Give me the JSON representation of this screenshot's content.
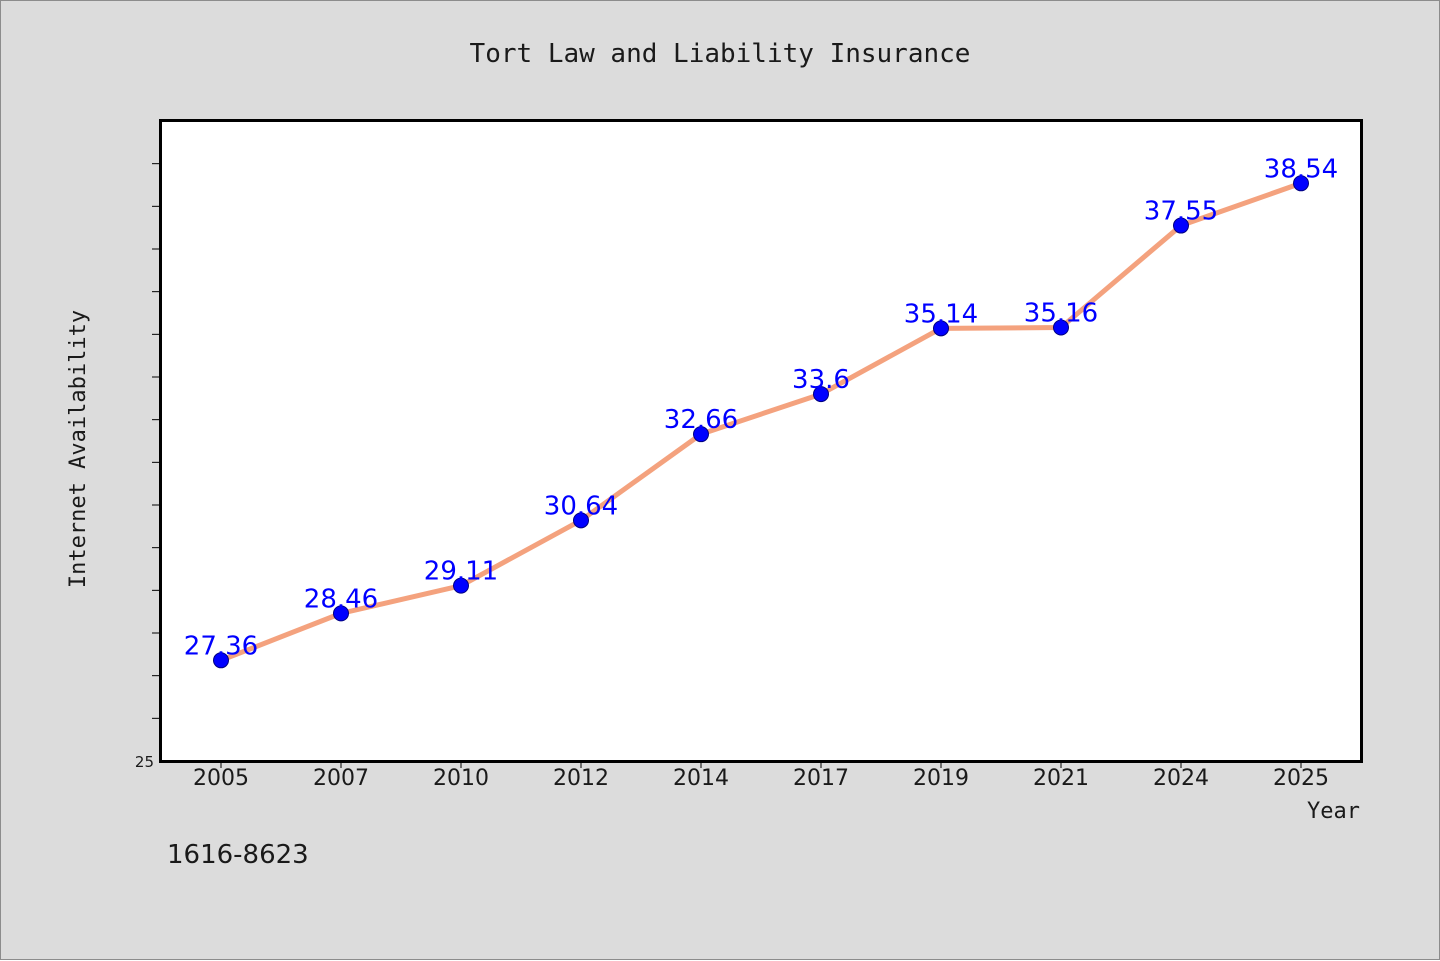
{
  "footer_code": "1616-8623",
  "colors": {
    "figure_background": "#dcdcdc",
    "plot_background": "#ffffff",
    "line": "#f4a27e",
    "marker": "#0000ff",
    "data_label": "#0000ff",
    "text": "#1a1a1a"
  },
  "chart_data": {
    "type": "line",
    "title": "Tort Law and Liability Insurance",
    "xlabel": "Year",
    "ylabel": "Internet Availability",
    "categories": [
      "2005",
      "2007",
      "2010",
      "2012",
      "2014",
      "2017",
      "2019",
      "2021",
      "2024",
      "2025"
    ],
    "series": [
      {
        "values": [
          27.36,
          28.46,
          29.11,
          30.64,
          32.66,
          33.6,
          35.14,
          35.16,
          37.55,
          38.54
        ]
      }
    ],
    "data_labels": [
      "27.36",
      "28.46",
      "29.11",
      "30.64",
      "32.66",
      "33.6",
      "35.14",
      "35.16",
      "37.55",
      "38.54"
    ],
    "ylim": [
      25,
      40
    ],
    "y_tick_step": 1,
    "y_tick_labels": [
      "25"
    ],
    "grid": false,
    "legend": "none",
    "line_style": "solid",
    "marker": "circle"
  }
}
